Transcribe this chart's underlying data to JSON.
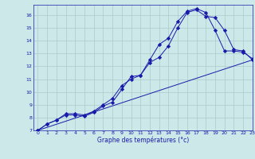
{
  "xlabel": "Graphe des températures (°c)",
  "bg_color": "#cce8e8",
  "grid_color": "#aacccc",
  "line_color": "#1a1aaa",
  "xlim": [
    -0.5,
    23
  ],
  "ylim": [
    7,
    16.8
  ],
  "yticks": [
    7,
    8,
    9,
    10,
    11,
    12,
    13,
    14,
    15,
    16
  ],
  "xticks": [
    0,
    1,
    2,
    3,
    4,
    5,
    6,
    7,
    8,
    9,
    10,
    11,
    12,
    13,
    14,
    15,
    16,
    17,
    18,
    19,
    20,
    21,
    22,
    23
  ],
  "line1_x": [
    0,
    1,
    2,
    3,
    4,
    5,
    6,
    7,
    8,
    9,
    10,
    11,
    12,
    13,
    14,
    15,
    16,
    17,
    18,
    19,
    20,
    21,
    22,
    23
  ],
  "line1_y": [
    7.0,
    7.5,
    7.8,
    8.3,
    8.3,
    8.2,
    8.5,
    9.0,
    9.5,
    10.5,
    11.0,
    11.3,
    12.5,
    13.7,
    14.2,
    15.5,
    16.3,
    16.5,
    16.2,
    14.8,
    13.2,
    13.2,
    13.1,
    12.6
  ],
  "line2_x": [
    0,
    1,
    2,
    3,
    4,
    5,
    6,
    7,
    8,
    9,
    10,
    11,
    12,
    13,
    14,
    15,
    16,
    17,
    18,
    19,
    20,
    21,
    22,
    23
  ],
  "line2_y": [
    7.0,
    7.5,
    7.8,
    8.2,
    8.2,
    8.1,
    8.4,
    8.9,
    9.2,
    10.2,
    11.2,
    11.3,
    12.3,
    12.7,
    13.6,
    15.0,
    16.2,
    16.4,
    15.9,
    15.8,
    14.8,
    13.3,
    13.2,
    12.5
  ],
  "line3_x": [
    0,
    23
  ],
  "line3_y": [
    7.0,
    12.5
  ]
}
